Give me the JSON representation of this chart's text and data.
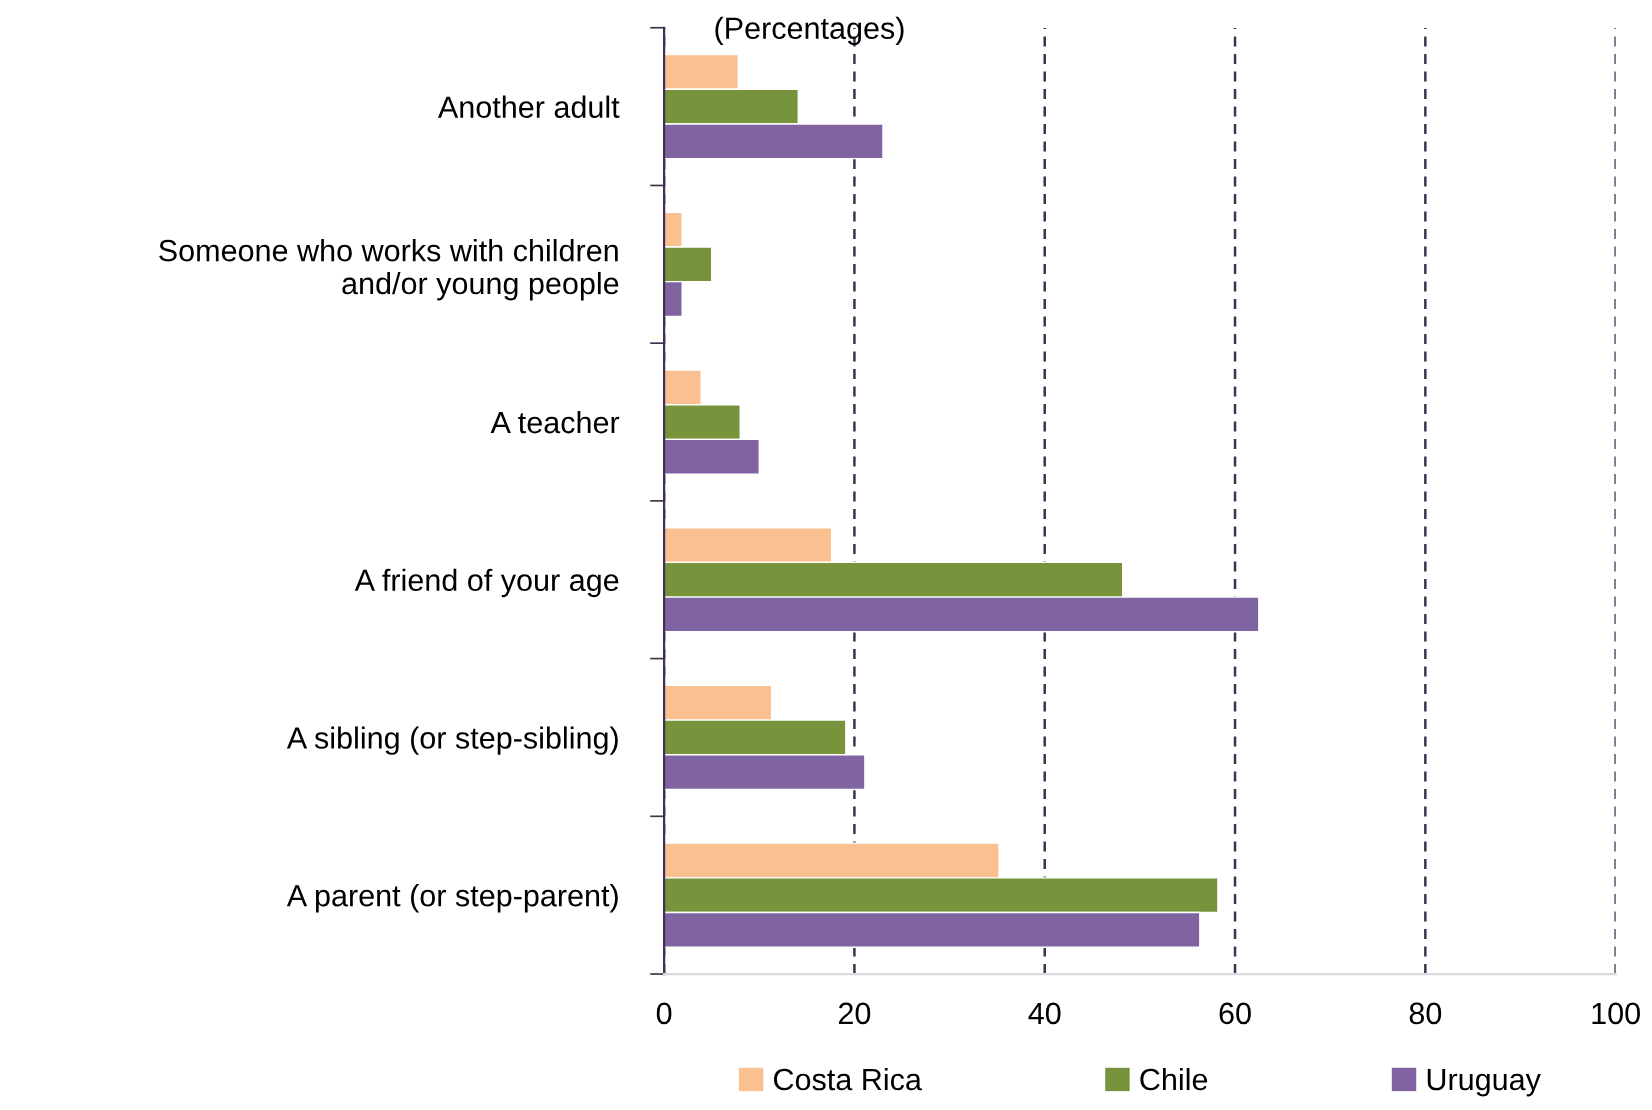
{
  "chart_data": {
    "type": "bar",
    "orientation": "horizontal",
    "subtitle": "(Percentages)",
    "categories": [
      "Another adult",
      "Someone who works with children\nand/or young people",
      "A teacher",
      "A friend of your age",
      "A sibling (or step-sibling)",
      "A parent (or step-parent)"
    ],
    "series": [
      {
        "name": "Costa Rica",
        "color": "#fac090",
        "values": [
          7.8,
          1.9,
          3.9,
          17.6,
          11.3,
          35.2
        ]
      },
      {
        "name": "Chile",
        "color": "#77933c",
        "values": [
          14.1,
          5.0,
          8.0,
          48.2,
          19.1,
          58.2
        ]
      },
      {
        "name": "Uruguay",
        "color": "#8064a2",
        "values": [
          23.0,
          1.9,
          10.0,
          62.5,
          21.1,
          56.3
        ]
      }
    ],
    "xlim": [
      0,
      100
    ],
    "xticks": [
      0,
      20,
      40,
      60,
      80,
      100
    ],
    "grid": "x",
    "legend": "bottom"
  }
}
